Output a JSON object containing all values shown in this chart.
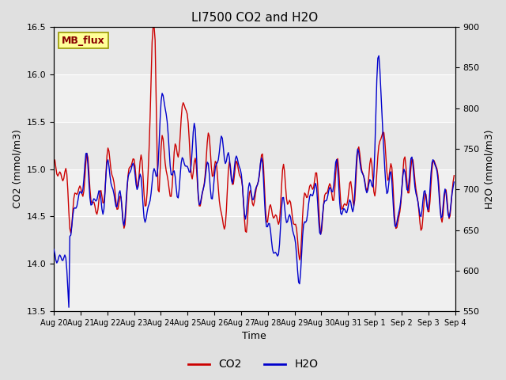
{
  "title": "LI7500 CO2 and H2O",
  "xlabel": "Time",
  "ylabel_left": "CO2 (mmol/m3)",
  "ylabel_right": "H2O (mmol/m3)",
  "ylim_left": [
    13.5,
    16.5
  ],
  "ylim_right": [
    550,
    900
  ],
  "yticks_left": [
    13.5,
    14.0,
    14.5,
    15.0,
    15.5,
    16.0,
    16.5
  ],
  "yticks_right": [
    550,
    600,
    650,
    700,
    750,
    800,
    850,
    900
  ],
  "xtick_labels": [
    "Aug 20",
    "Aug 21",
    "Aug 22",
    "Aug 23",
    "Aug 24",
    "Aug 25",
    "Aug 26",
    "Aug 27",
    "Aug 28",
    "Aug 29",
    "Aug 30",
    "Aug 31",
    "Sep 1",
    "Sep 2",
    "Sep 3",
    "Sep 4"
  ],
  "co2_color": "#cc0000",
  "h2o_color": "#0000cc",
  "linewidth": 1.0,
  "legend_label_co2": "CO2",
  "legend_label_h2o": "H2O",
  "watermark_text": "MB_flux",
  "watermark_fgcolor": "#880000",
  "watermark_bgcolor": "#ffff99",
  "watermark_edgecolor": "#999900",
  "bg_color": "#e0e0e0",
  "plot_bg_color": "#e8e8e8",
  "grid_color": "#ffffff",
  "n_points": 400,
  "seed": 7
}
